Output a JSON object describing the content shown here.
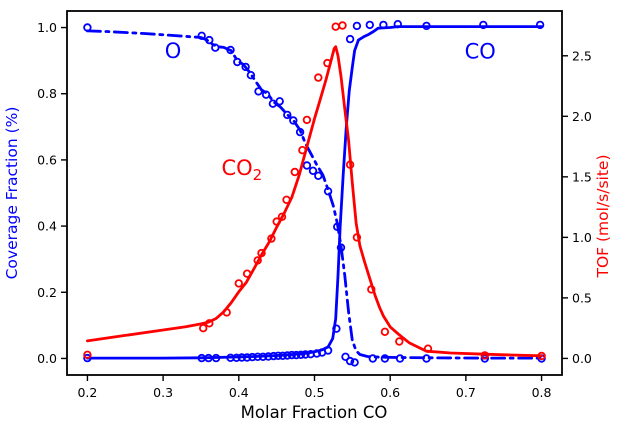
{
  "figure": {
    "background": "#ffffff",
    "frame_color": "#000000"
  },
  "chart_data": {
    "type": "line",
    "title": "",
    "xlabel": "Molar Fraction CO",
    "ylabel_left": "Coverage Fraction (%)",
    "ylabel_right": "TOF (mol/s/site)",
    "axis_colors": {
      "left": "#0000ff",
      "right": "#ff0000",
      "ticks": "#000000"
    },
    "xlim": [
      0.173,
      0.827
    ],
    "ylim_left": [
      -0.05,
      1.05
    ],
    "ylim_right": [
      -0.137,
      2.87
    ],
    "grid": false,
    "legend": "inline text annotations instead of legend box",
    "xticks": [
      {
        "value": 0.2,
        "label": "0.2"
      },
      {
        "value": 0.3,
        "label": "0.3"
      },
      {
        "value": 0.4,
        "label": "0.4"
      },
      {
        "value": 0.5,
        "label": "0.5"
      },
      {
        "value": 0.6,
        "label": "0.6"
      },
      {
        "value": 0.7,
        "label": "0.7"
      },
      {
        "value": 0.8,
        "label": "0.8"
      }
    ],
    "yticks_left": [
      {
        "value": 0.0,
        "label": "0.0"
      },
      {
        "value": 0.2,
        "label": "0.2"
      },
      {
        "value": 0.4,
        "label": "0.4"
      },
      {
        "value": 0.6,
        "label": "0.6"
      },
      {
        "value": 0.8,
        "label": "0.8"
      },
      {
        "value": 1.0,
        "label": "1.0"
      }
    ],
    "yticks_right": [
      {
        "value": 0.0,
        "label": "0.0"
      },
      {
        "value": 0.5,
        "label": "0.5"
      },
      {
        "value": 1.0,
        "label": "1.0"
      },
      {
        "value": 1.5,
        "label": "1.5"
      },
      {
        "value": 2.0,
        "label": "2.0"
      },
      {
        "value": 2.5,
        "label": "2.5"
      }
    ],
    "annotations": [
      {
        "id": "o-label",
        "text": "O",
        "sub": "",
        "x": 0.313,
        "y": 0.908,
        "color": "#0000ff"
      },
      {
        "id": "co-label",
        "text": "CO",
        "sub": "",
        "x": 0.719,
        "y": 0.906,
        "color": "#0000ff"
      },
      {
        "id": "co2-label",
        "text": "CO",
        "sub": "2",
        "x": 0.404,
        "y": 0.554,
        "color": "#ff0000"
      }
    ],
    "series": [
      {
        "id": "o-coverage",
        "name": "O coverage",
        "axis": "left",
        "color": "#0000ff",
        "style": "dashdot",
        "line": [
          [
            0.2,
            0.99
          ],
          [
            0.225,
            0.988
          ],
          [
            0.25,
            0.985
          ],
          [
            0.275,
            0.982
          ],
          [
            0.3,
            0.978
          ],
          [
            0.325,
            0.974
          ],
          [
            0.35,
            0.97
          ],
          [
            0.358,
            0.962
          ],
          [
            0.365,
            0.95
          ],
          [
            0.372,
            0.942
          ],
          [
            0.38,
            0.94
          ],
          [
            0.39,
            0.93
          ],
          [
            0.398,
            0.9
          ],
          [
            0.406,
            0.888
          ],
          [
            0.414,
            0.866
          ],
          [
            0.422,
            0.838
          ],
          [
            0.43,
            0.812
          ],
          [
            0.438,
            0.8
          ],
          [
            0.446,
            0.775
          ],
          [
            0.455,
            0.76
          ],
          [
            0.464,
            0.737
          ],
          [
            0.472,
            0.72
          ],
          [
            0.481,
            0.69
          ],
          [
            0.488,
            0.65
          ],
          [
            0.495,
            0.62
          ],
          [
            0.503,
            0.585
          ],
          [
            0.511,
            0.555
          ],
          [
            0.518,
            0.51
          ],
          [
            0.525,
            0.46
          ],
          [
            0.53,
            0.41
          ],
          [
            0.535,
            0.34
          ],
          [
            0.54,
            0.25
          ],
          [
            0.545,
            0.14
          ],
          [
            0.55,
            0.055
          ],
          [
            0.555,
            0.023
          ],
          [
            0.56,
            0.012
          ],
          [
            0.57,
            0.006
          ],
          [
            0.585,
            0.004
          ],
          [
            0.61,
            0.003
          ],
          [
            0.65,
            0.002
          ],
          [
            0.725,
            0.001
          ],
          [
            0.8,
            0.001
          ]
        ],
        "markers": [
          [
            0.2,
            1.0
          ],
          [
            0.351,
            0.975
          ],
          [
            0.361,
            0.962
          ],
          [
            0.369,
            0.939
          ],
          [
            0.389,
            0.932
          ],
          [
            0.398,
            0.896
          ],
          [
            0.409,
            0.881
          ],
          [
            0.416,
            0.856
          ],
          [
            0.426,
            0.807
          ],
          [
            0.436,
            0.797
          ],
          [
            0.445,
            0.77
          ],
          [
            0.454,
            0.777
          ],
          [
            0.464,
            0.736
          ],
          [
            0.472,
            0.719
          ],
          [
            0.481,
            0.684
          ],
          [
            0.49,
            0.583
          ],
          [
            0.498,
            0.567
          ],
          [
            0.505,
            0.552
          ],
          [
            0.518,
            0.505
          ],
          [
            0.53,
            0.398
          ],
          [
            0.535,
            0.335
          ],
          [
            0.541,
            0.005
          ],
          [
            0.547,
            -0.008
          ],
          [
            0.553,
            -0.012
          ],
          [
            0.577,
            0.0
          ],
          [
            0.593,
            0.0
          ],
          [
            0.613,
            0.0
          ],
          [
            0.648,
            0.0
          ],
          [
            0.725,
            0.0
          ],
          [
            0.8,
            0.0
          ]
        ]
      },
      {
        "id": "co-coverage",
        "name": "CO coverage",
        "axis": "left",
        "color": "#0000ff",
        "style": "solid",
        "line": [
          [
            0.2,
            0.001
          ],
          [
            0.3,
            0.001
          ],
          [
            0.35,
            0.002
          ],
          [
            0.39,
            0.004
          ],
          [
            0.42,
            0.006
          ],
          [
            0.45,
            0.009
          ],
          [
            0.47,
            0.012
          ],
          [
            0.49,
            0.016
          ],
          [
            0.5,
            0.02
          ],
          [
            0.51,
            0.026
          ],
          [
            0.518,
            0.035
          ],
          [
            0.524,
            0.06
          ],
          [
            0.528,
            0.12
          ],
          [
            0.531,
            0.25
          ],
          [
            0.534,
            0.4
          ],
          [
            0.538,
            0.56
          ],
          [
            0.542,
            0.7
          ],
          [
            0.546,
            0.81
          ],
          [
            0.55,
            0.88
          ],
          [
            0.553,
            0.93
          ],
          [
            0.558,
            0.962
          ],
          [
            0.565,
            0.972
          ],
          [
            0.572,
            0.98
          ],
          [
            0.578,
            0.988
          ],
          [
            0.584,
            0.998
          ],
          [
            0.6,
            1.0
          ],
          [
            0.61,
            1.003
          ],
          [
            0.65,
            1.003
          ],
          [
            0.725,
            1.003
          ],
          [
            0.8,
            1.003
          ]
        ],
        "markers": [
          [
            0.2,
            0.001
          ],
          [
            0.351,
            0.001
          ],
          [
            0.36,
            0.001
          ],
          [
            0.37,
            0.001
          ],
          [
            0.389,
            0.002
          ],
          [
            0.397,
            0.002
          ],
          [
            0.404,
            0.003
          ],
          [
            0.411,
            0.003
          ],
          [
            0.418,
            0.004
          ],
          [
            0.425,
            0.005
          ],
          [
            0.432,
            0.005
          ],
          [
            0.439,
            0.006
          ],
          [
            0.446,
            0.007
          ],
          [
            0.452,
            0.008
          ],
          [
            0.458,
            0.008
          ],
          [
            0.464,
            0.009
          ],
          [
            0.47,
            0.01
          ],
          [
            0.476,
            0.01
          ],
          [
            0.482,
            0.011
          ],
          [
            0.488,
            0.012
          ],
          [
            0.495,
            0.013
          ],
          [
            0.503,
            0.015
          ],
          [
            0.51,
            0.018
          ],
          [
            0.518,
            0.024
          ],
          [
            0.529,
            0.09
          ],
          [
            0.547,
            0.965
          ],
          [
            0.556,
            1.005
          ],
          [
            0.573,
            1.008
          ],
          [
            0.591,
            1.008
          ],
          [
            0.61,
            1.01
          ],
          [
            0.648,
            1.005
          ],
          [
            0.723,
            1.008
          ],
          [
            0.798,
            1.008
          ]
        ]
      },
      {
        "id": "co2-tof",
        "name": "CO2 turnover frequency",
        "axis": "right",
        "color": "#ff0000",
        "style": "solid",
        "line": [
          [
            0.2,
            0.145
          ],
          [
            0.25,
            0.19
          ],
          [
            0.3,
            0.235
          ],
          [
            0.33,
            0.262
          ],
          [
            0.35,
            0.285
          ],
          [
            0.36,
            0.3
          ],
          [
            0.37,
            0.33
          ],
          [
            0.38,
            0.385
          ],
          [
            0.39,
            0.46
          ],
          [
            0.4,
            0.55
          ],
          [
            0.41,
            0.63
          ],
          [
            0.42,
            0.74
          ],
          [
            0.43,
            0.855
          ],
          [
            0.44,
            0.96
          ],
          [
            0.45,
            1.085
          ],
          [
            0.46,
            1.2
          ],
          [
            0.47,
            1.33
          ],
          [
            0.48,
            1.52
          ],
          [
            0.49,
            1.75
          ],
          [
            0.5,
            1.98
          ],
          [
            0.508,
            2.15
          ],
          [
            0.515,
            2.3
          ],
          [
            0.521,
            2.44
          ],
          [
            0.526,
            2.56
          ],
          [
            0.528,
            2.575
          ],
          [
            0.531,
            2.5
          ],
          [
            0.535,
            2.33
          ],
          [
            0.54,
            2.06
          ],
          [
            0.545,
            1.8
          ],
          [
            0.55,
            1.45
          ],
          [
            0.555,
            1.12
          ],
          [
            0.56,
            0.93
          ],
          [
            0.566,
            0.8
          ],
          [
            0.572,
            0.68
          ],
          [
            0.58,
            0.52
          ],
          [
            0.586,
            0.42
          ],
          [
            0.591,
            0.35
          ],
          [
            0.6,
            0.26
          ],
          [
            0.611,
            0.2
          ],
          [
            0.625,
            0.13
          ],
          [
            0.648,
            0.06
          ],
          [
            0.68,
            0.045
          ],
          [
            0.725,
            0.035
          ],
          [
            0.76,
            0.028
          ],
          [
            0.8,
            0.022
          ]
        ],
        "markers": [
          [
            0.2,
            0.03
          ],
          [
            0.353,
            0.25
          ],
          [
            0.361,
            0.29
          ],
          [
            0.384,
            0.38
          ],
          [
            0.4,
            0.62
          ],
          [
            0.411,
            0.7
          ],
          [
            0.425,
            0.81
          ],
          [
            0.43,
            0.87
          ],
          [
            0.443,
            0.99
          ],
          [
            0.45,
            1.13
          ],
          [
            0.457,
            1.17
          ],
          [
            0.463,
            1.31
          ],
          [
            0.474,
            1.54
          ],
          [
            0.484,
            1.72
          ],
          [
            0.49,
            1.97
          ],
          [
            0.505,
            2.32
          ],
          [
            0.517,
            2.44
          ],
          [
            0.528,
            2.74
          ],
          [
            0.537,
            2.75
          ],
          [
            0.547,
            1.6
          ],
          [
            0.556,
            1.0
          ],
          [
            0.575,
            0.57
          ],
          [
            0.593,
            0.22
          ],
          [
            0.612,
            0.14
          ],
          [
            0.65,
            0.08
          ],
          [
            0.725,
            0.025
          ],
          [
            0.8,
            0.02
          ]
        ]
      }
    ]
  }
}
